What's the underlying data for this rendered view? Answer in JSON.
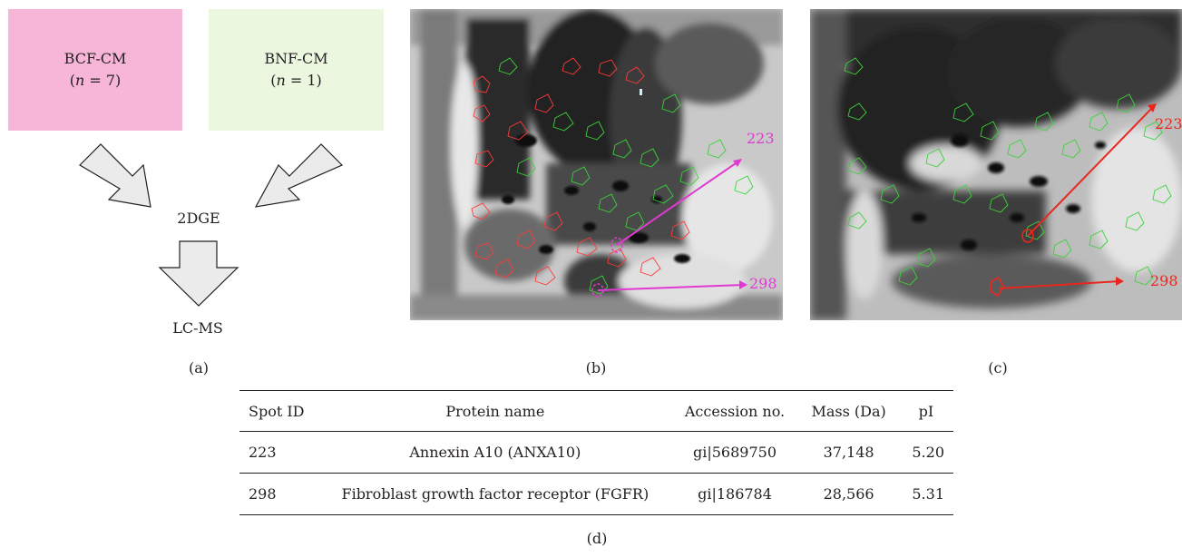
{
  "panel_a": {
    "box_bcf": {
      "name": "BCF-CM",
      "n_var": "n",
      "n_rest": " = 7)",
      "color": "#f7b6d8"
    },
    "box_bnf": {
      "name": "BNF-CM",
      "n_var": "n",
      "n_rest": " = 1)",
      "color": "#ebf7de"
    },
    "paren_open": "(",
    "step_2dge": "2DGE",
    "step_lcms": "LC-MS",
    "arrow_fill": "#ebebeb",
    "arrow_stroke": "#231f20"
  },
  "panel_b": {
    "spot_223": "223",
    "spot_298": "298",
    "marker_color": "#e03ad0"
  },
  "panel_c": {
    "spot_223": "223",
    "spot_298": "298",
    "marker_color": "#e8281e"
  },
  "captions": {
    "a": "(a)",
    "b": "(b)",
    "c": "(c)",
    "d": "(d)"
  },
  "table": {
    "headers": [
      "Spot ID",
      "Protein name",
      "Accession no.",
      "Mass (Da)",
      "pI"
    ],
    "rows": [
      [
        "223",
        "Annexin A10 (ANXA10)",
        "gi|5689750",
        "37,148",
        "5.20"
      ],
      [
        "298",
        "Fibroblast growth factor receptor (FGFR)",
        "gi|186784",
        "28,566",
        "5.31"
      ]
    ]
  }
}
